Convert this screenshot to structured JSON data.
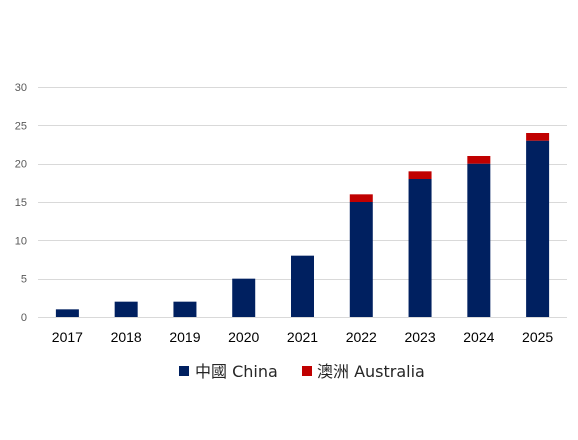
{
  "chart_data": {
    "type": "bar",
    "stacked": true,
    "categories": [
      "2017",
      "2018",
      "2019",
      "2020",
      "2021",
      "2022",
      "2023",
      "2024",
      "2025"
    ],
    "series": [
      {
        "name": "中國 China",
        "values": [
          1,
          2,
          2,
          5,
          8,
          15,
          18,
          20,
          23
        ],
        "color": "#002060"
      },
      {
        "name": "澳洲 Australia",
        "values": [
          0,
          0,
          0,
          0,
          0,
          1,
          1,
          1,
          1
        ],
        "color": "#C00000"
      }
    ],
    "ylim": [
      0,
      30
    ],
    "yticks": [
      0,
      5,
      10,
      15,
      20,
      25,
      30
    ],
    "title": "",
    "xlabel": "",
    "ylabel": "",
    "grid": true,
    "legend_position": "bottom",
    "gridline_color": "#D9D9D9"
  }
}
